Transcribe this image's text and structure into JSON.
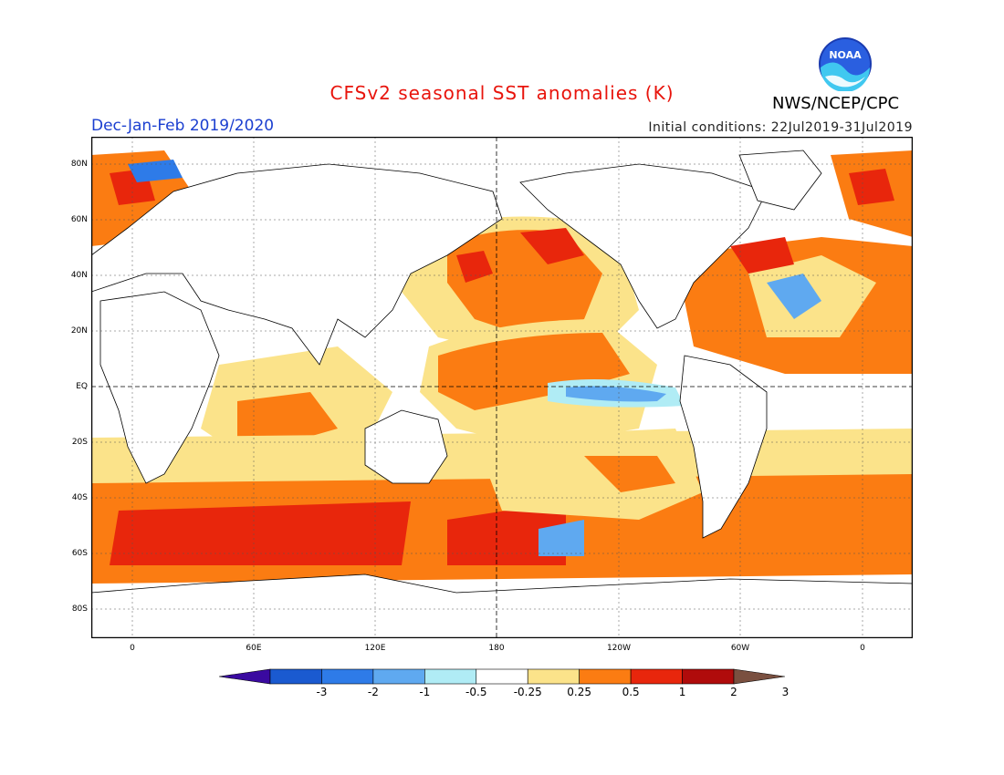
{
  "title": "CFSv2 seasonal SST anomalies (K)",
  "agency": "NWS/NCEP/CPC",
  "logo_text": "NOAA",
  "season": "Dec-Jan-Feb 2019/2020",
  "initial_conditions": "Initial conditions: 22Jul2019-31Jul2019",
  "lat_labels": [
    "80N",
    "60N",
    "40N",
    "20N",
    "EQ",
    "20S",
    "40S",
    "60S",
    "80S"
  ],
  "lon_labels": [
    "0",
    "60E",
    "120E",
    "180",
    "120W",
    "60W",
    "0"
  ],
  "colorbar": {
    "labels": [
      "-3",
      "-2",
      "-1",
      "-0.5",
      "-0.25",
      "0.25",
      "0.5",
      "1",
      "2",
      "3"
    ],
    "colors": [
      "#3a0aa0",
      "#1a5ad0",
      "#2e7be8",
      "#5fa9f0",
      "#b0ecf5",
      "#ffffff",
      "#fbe38a",
      "#fb7c12",
      "#e8260c",
      "#b00b0b",
      "#7a5040"
    ]
  },
  "colors": {
    "title": "#e8140c",
    "season": "#1b3fd0"
  }
}
